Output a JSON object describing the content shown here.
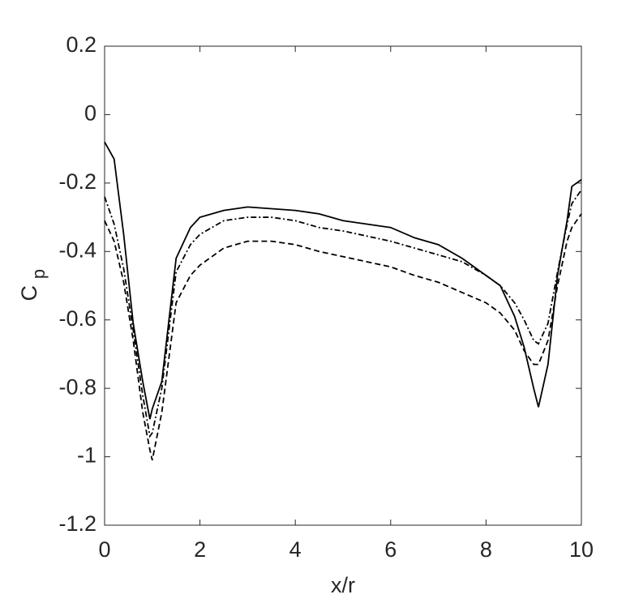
{
  "chart_data": {
    "type": "line",
    "xlabel": "x/r",
    "ylabel": "C",
    "ylabel_subscript": "p",
    "x": [
      0,
      0.2,
      0.4,
      0.6,
      0.8,
      0.95,
      1.0,
      1.2,
      1.5,
      1.8,
      2.0,
      2.5,
      3,
      3.5,
      4,
      4.5,
      5,
      5.5,
      6,
      6.5,
      7,
      7.5,
      8,
      8.3,
      8.6,
      8.8,
      9.0,
      9.1,
      9.3,
      9.5,
      9.7,
      9.8,
      10
    ],
    "series": [
      {
        "color": "#000000",
        "dash": "solid",
        "values": [
          -0.08,
          -0.13,
          -0.35,
          -0.61,
          -0.78,
          -0.89,
          -0.86,
          -0.78,
          -0.42,
          -0.33,
          -0.3,
          -0.28,
          -0.27,
          -0.275,
          -0.28,
          -0.29,
          -0.31,
          -0.32,
          -0.33,
          -0.36,
          -0.38,
          -0.42,
          -0.47,
          -0.5,
          -0.59,
          -0.68,
          -0.8,
          -0.855,
          -0.73,
          -0.47,
          -0.31,
          -0.21,
          -0.19
        ]
      },
      {
        "color": "#000000",
        "dash": "dashdot",
        "values": [
          -0.24,
          -0.32,
          -0.45,
          -0.63,
          -0.82,
          -0.94,
          -0.93,
          -0.8,
          -0.46,
          -0.38,
          -0.35,
          -0.31,
          -0.3,
          -0.3,
          -0.31,
          -0.33,
          -0.34,
          -0.355,
          -0.37,
          -0.39,
          -0.41,
          -0.43,
          -0.47,
          -0.5,
          -0.55,
          -0.6,
          -0.66,
          -0.67,
          -0.61,
          -0.46,
          -0.32,
          -0.26,
          -0.22
        ]
      },
      {
        "color": "#000000",
        "dash": "dashed",
        "values": [
          -0.31,
          -0.37,
          -0.49,
          -0.66,
          -0.87,
          -0.98,
          -1.01,
          -0.87,
          -0.55,
          -0.47,
          -0.44,
          -0.39,
          -0.37,
          -0.37,
          -0.38,
          -0.4,
          -0.415,
          -0.43,
          -0.445,
          -0.47,
          -0.49,
          -0.52,
          -0.55,
          -0.58,
          -0.63,
          -0.69,
          -0.73,
          -0.73,
          -0.66,
          -0.5,
          -0.37,
          -0.33,
          -0.29
        ]
      }
    ],
    "xlim": [
      0,
      10
    ],
    "xticks": [
      0,
      2,
      4,
      6,
      8,
      10
    ],
    "ylim": [
      -1.2,
      0.2
    ],
    "yticks": [
      -1.2,
      -1,
      -0.8,
      -0.6,
      -0.4,
      -0.2,
      0,
      0.2
    ],
    "grid": false,
    "box": true
  }
}
